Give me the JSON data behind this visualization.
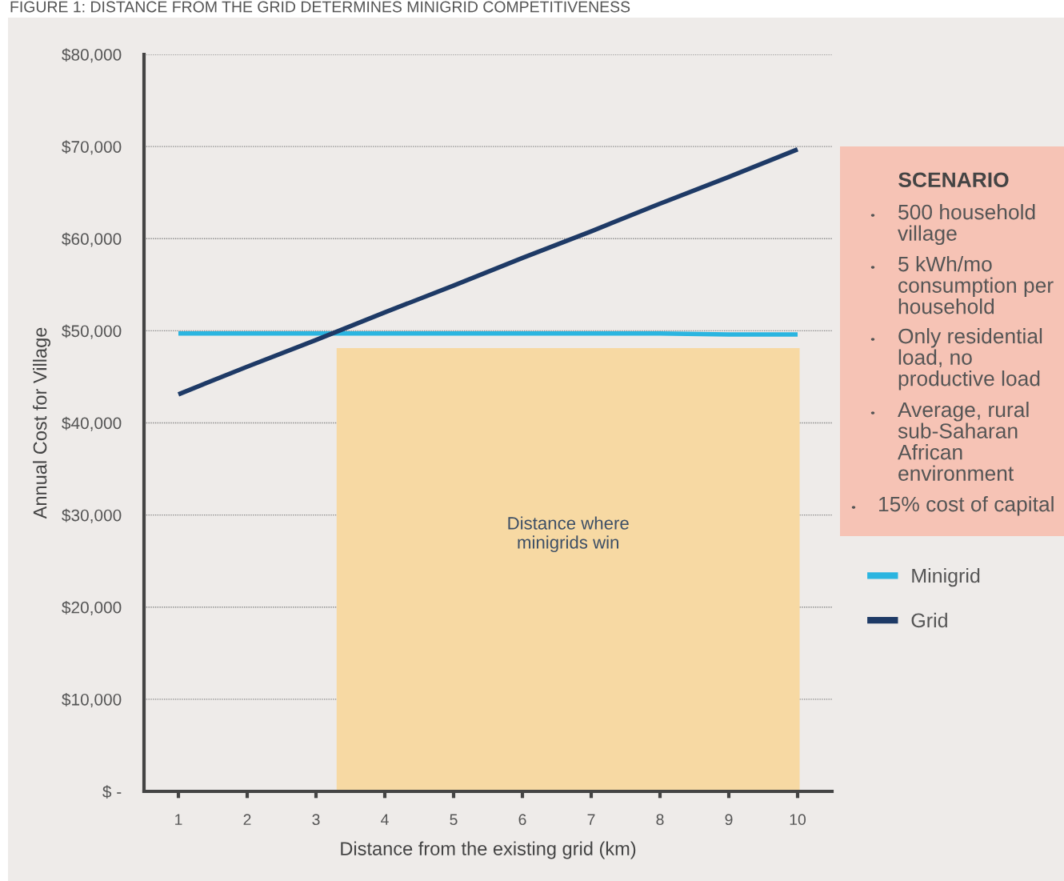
{
  "chart_data": {
    "type": "line",
    "title": "FIGURE 1: DISTANCE FROM THE GRID DETERMINES MINIGRID COMPETITIVENESS",
    "xlabel": "Distance from the existing grid (km)",
    "ylabel": "Annual Cost for Village",
    "x": [
      1,
      2,
      3,
      4,
      5,
      6,
      7,
      8,
      9,
      10
    ],
    "series": [
      {
        "name": "Minigrid",
        "color": "#2bb5e0",
        "values": [
          49700,
          49700,
          49700,
          49700,
          49700,
          49700,
          49700,
          49700,
          49600,
          49600
        ]
      },
      {
        "name": "Grid",
        "color": "#1e3a66",
        "values": [
          43100,
          46100,
          49000,
          52000,
          54900,
          57900,
          60800,
          63800,
          66700,
          69700
        ]
      }
    ],
    "xlim": [
      0.5,
      10.5
    ],
    "xticks": [
      1,
      2,
      3,
      4,
      5,
      6,
      7,
      8,
      9,
      10
    ],
    "ylim": [
      0,
      80000
    ],
    "yticks": [
      {
        "value": 0,
        "label": "$ -"
      },
      {
        "value": 10000,
        "label": "$10,000"
      },
      {
        "value": 20000,
        "label": "$20,000"
      },
      {
        "value": 30000,
        "label": "$30,000"
      },
      {
        "value": 40000,
        "label": "$40,000"
      },
      {
        "value": 50000,
        "label": "$50,000"
      },
      {
        "value": 60000,
        "label": "$60,000"
      },
      {
        "value": 70000,
        "label": "$70,000"
      },
      {
        "value": 80000,
        "label": "$80,000"
      }
    ],
    "bands": [
      {
        "axis": "x",
        "from": 3.3,
        "to": 10.03,
        "label": "Distance where\nminigrids win",
        "color": "#f7d9a3"
      }
    ],
    "annotations": [
      "SCENARIO",
      "500 household\nvillage",
      "5 kWh/mo\nconsumption per\nhousehold",
      "Only residential\nload, no\nproductive load",
      "Average, rural\nsub-Saharan\nAfrican\nenvironment",
      "15% cost of capital"
    ],
    "grid": "y",
    "legend": "right",
    "marker": "none",
    "line_style": "solid"
  }
}
